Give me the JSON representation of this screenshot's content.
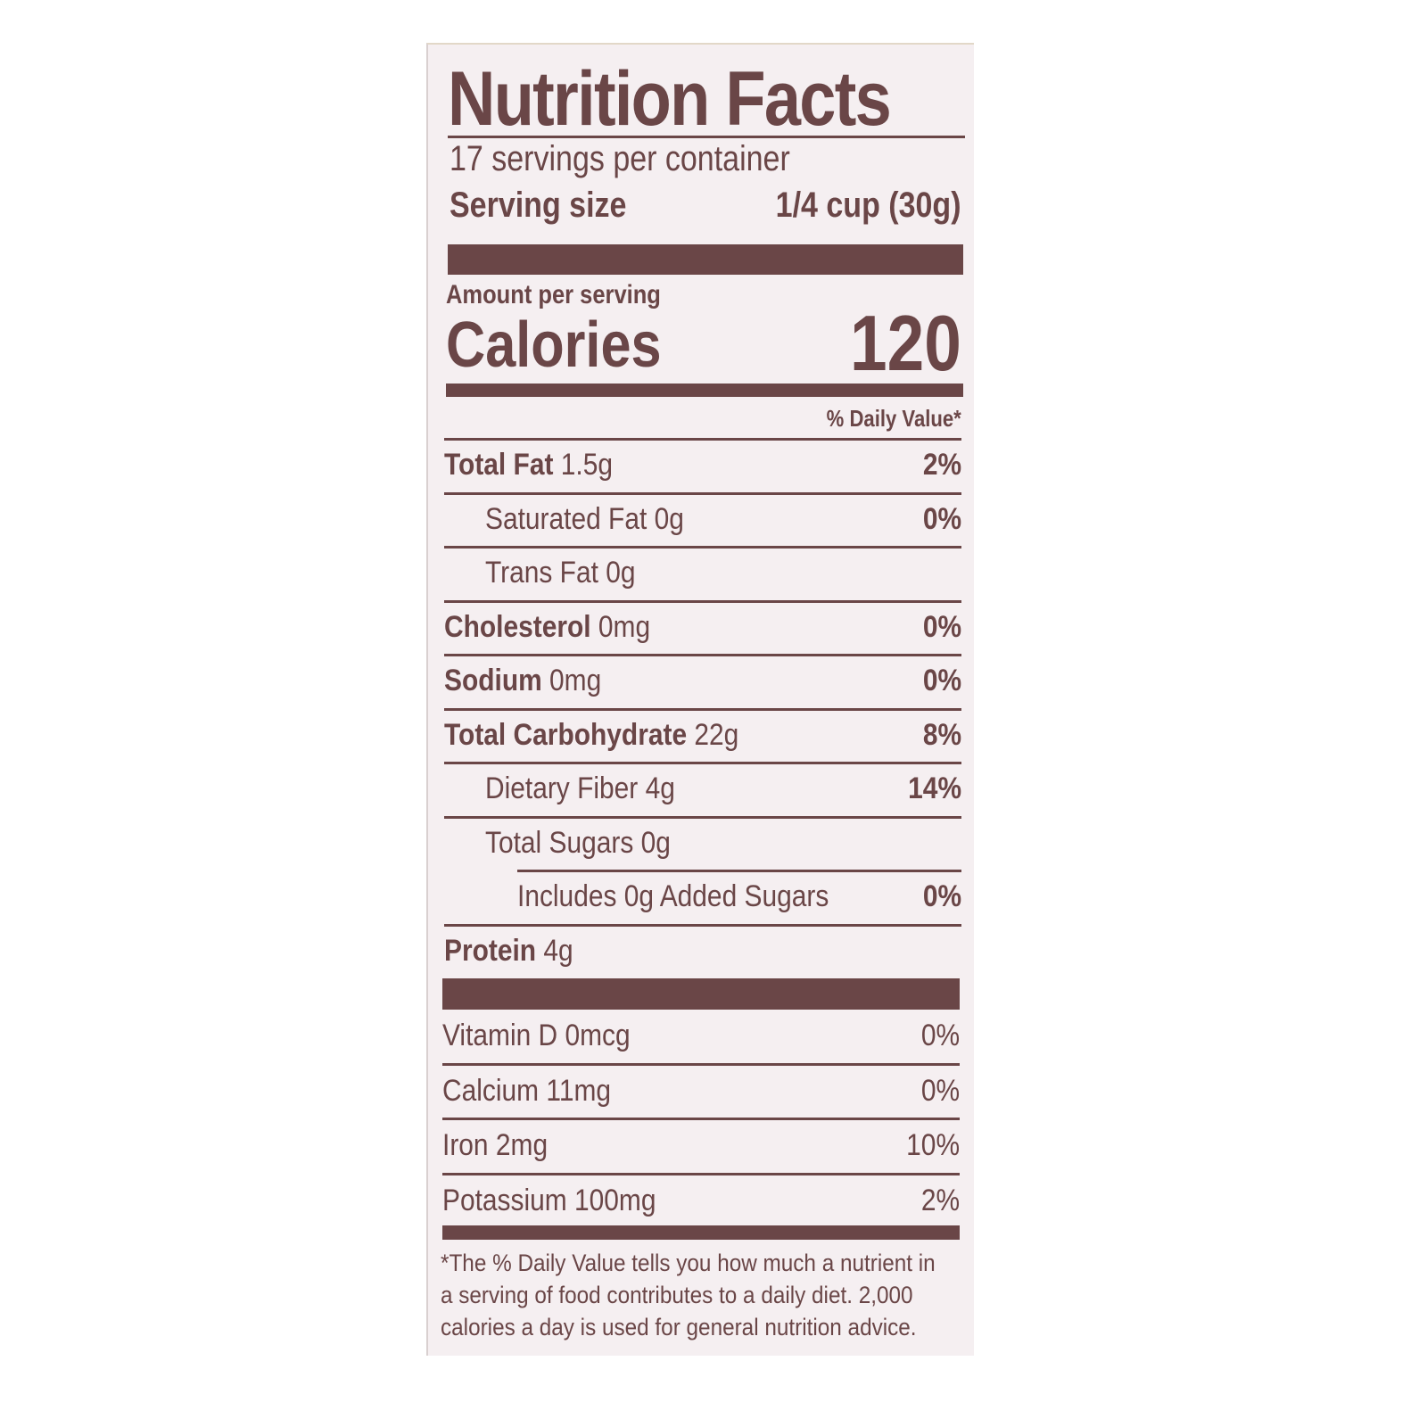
{
  "label": {
    "title": "Nutrition Facts",
    "servings_per_container": "17 servings per container",
    "serving_size_label": "Serving size",
    "serving_size_value": "1/4 cup (30g)",
    "amount_per_serving": "Amount per serving",
    "calories_label": "Calories",
    "calories_value": "120",
    "daily_value_header": "% Daily Value*",
    "nutrients": [
      {
        "name": "Total Fat",
        "amount": "1.5g",
        "dv": "2%",
        "bold": true,
        "indent": 0
      },
      {
        "name": "Saturated Fat",
        "amount": "0g",
        "dv": "0%",
        "bold": false,
        "indent": 1
      },
      {
        "name": "Trans Fat",
        "amount": "0g",
        "dv": "",
        "bold": false,
        "indent": 1
      },
      {
        "name": "Cholesterol",
        "amount": "0mg",
        "dv": "0%",
        "bold": true,
        "indent": 0
      },
      {
        "name": "Sodium",
        "amount": "0mg",
        "dv": "0%",
        "bold": true,
        "indent": 0
      },
      {
        "name": "Total Carbohydrate",
        "amount": "22g",
        "dv": "8%",
        "bold": true,
        "indent": 0
      },
      {
        "name": "Dietary Fiber",
        "amount": "4g",
        "dv": "14%",
        "bold": false,
        "indent": 1
      },
      {
        "name": "Total Sugars",
        "amount": "0g",
        "dv": "",
        "bold": false,
        "indent": 1
      },
      {
        "name": "Includes 0g Added Sugars",
        "amount": "",
        "dv": "0%",
        "bold": false,
        "indent": 2
      },
      {
        "name": "Protein",
        "amount": "4g",
        "dv": "",
        "bold": true,
        "indent": 0
      }
    ],
    "vitamins": [
      {
        "name": "Vitamin D",
        "amount": "0mcg",
        "dv": "0%"
      },
      {
        "name": "Calcium",
        "amount": "11mg",
        "dv": "0%"
      },
      {
        "name": "Iron",
        "amount": "2mg",
        "dv": "10%"
      },
      {
        "name": "Potassium",
        "amount": "100mg",
        "dv": "2%"
      }
    ],
    "footnote_lines": [
      "*The % Daily Value tells you how much a nutrient in",
      "a serving of food contributes to a daily diet. 2,000",
      "calories a day is used for general nutrition advice."
    ],
    "colors": {
      "ink": "#6a4647",
      "background": "#f5eff1"
    }
  }
}
